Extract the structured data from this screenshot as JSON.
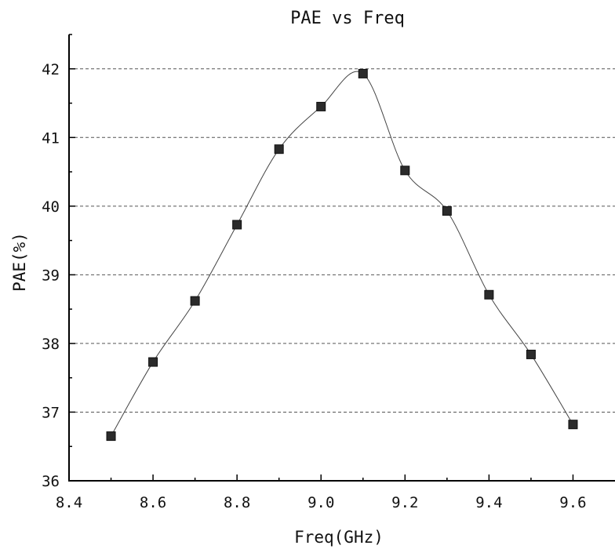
{
  "chart_data": {
    "type": "line",
    "title": "PAE vs Freq",
    "xlabel": "Freq(GHz)",
    "ylabel": "PAE(%)",
    "xlim": [
      8.4,
      9.7
    ],
    "ylim": [
      36,
      42.5
    ],
    "x_ticks": [
      8.4,
      8.6,
      8.8,
      9.0,
      9.2,
      9.4,
      9.6
    ],
    "x_tick_labels": [
      "8.4",
      "8.6",
      "8.8",
      "9.0",
      "9.2",
      "9.4",
      "9.6"
    ],
    "y_ticks": [
      36,
      37,
      38,
      39,
      40,
      41,
      42
    ],
    "y_tick_labels": [
      "36",
      "37",
      "38",
      "39",
      "40",
      "41",
      "42"
    ],
    "grid": "horizontal-dashed",
    "marker": "square",
    "smooth": true,
    "x": [
      8.5,
      8.6,
      8.7,
      8.8,
      8.9,
      9.0,
      9.1,
      9.2,
      9.3,
      9.4,
      9.5,
      9.6
    ],
    "y": [
      36.65,
      37.73,
      38.62,
      39.73,
      40.83,
      41.45,
      41.93,
      40.52,
      39.93,
      38.71,
      37.84,
      36.82
    ],
    "colors": {
      "marker": "#2b2b2b",
      "line": "#444444",
      "grid": "#555555"
    }
  }
}
